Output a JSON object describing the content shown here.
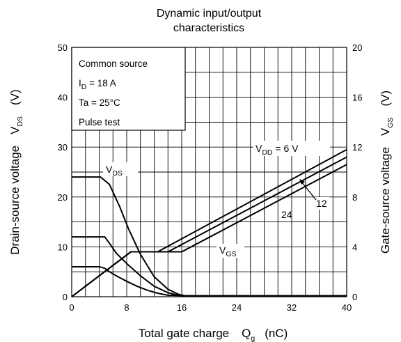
{
  "chart_data": {
    "type": "line",
    "title_line1": "Dynamic input/output",
    "title_line2": "characteristics",
    "xlabel": "Total gate charge",
    "xlabel_symbol": "Q",
    "xlabel_symbol_sub": "g",
    "xlabel_unit": "(nC)",
    "ylabel_left": "Drain-source voltage",
    "ylabel_left_symbol": "V",
    "ylabel_left_symbol_sub": "DS",
    "ylabel_left_unit": "(V)",
    "ylabel_right": "Gate-source voltage",
    "ylabel_right_symbol": "V",
    "ylabel_right_symbol_sub": "GS",
    "ylabel_right_unit": "(V)",
    "xlim": [
      0,
      40
    ],
    "ylim_left": [
      0,
      50
    ],
    "ylim_right": [
      0,
      20
    ],
    "x_ticks": [
      0,
      8,
      16,
      24,
      32,
      40
    ],
    "y_left_ticks": [
      0,
      10,
      20,
      30,
      40,
      50
    ],
    "y_right_ticks": [
      0,
      4,
      8,
      12,
      16,
      20
    ],
    "grid": true,
    "conditions": {
      "line1": "Common source",
      "line2_prefix": "I",
      "line2_sub": "D",
      "line2_rest": " = 18 A",
      "line3": "Ta = 25°C",
      "line4": "Pulse test"
    },
    "series_labels": {
      "vds_main": "V",
      "vds_sub": "DS",
      "vgs_main": "V",
      "vgs_sub": "GS",
      "vdd_main": "V",
      "vdd_sub": "DD",
      "vdd_rest": " = 6 V",
      "vdd_12": "12",
      "vdd_24": "24"
    },
    "series": [
      {
        "name": "VDS VDD=24V",
        "axis": "left",
        "x": [
          0,
          4.2,
          5.5,
          7,
          8.3,
          10,
          12,
          14,
          15.5,
          16.5,
          40
        ],
        "y": [
          24,
          24,
          22.5,
          18,
          13.5,
          8.5,
          4,
          1.5,
          0.5,
          0.2,
          0.2
        ]
      },
      {
        "name": "VDS VDD=12V",
        "axis": "left",
        "x": [
          0,
          4.8,
          5.6,
          6.5,
          8.2,
          10,
          12,
          14,
          15.5,
          16.5,
          40
        ],
        "y": [
          12,
          12,
          10.5,
          8.7,
          6.4,
          4.2,
          2.1,
          0.8,
          0.3,
          0.2,
          0.2
        ]
      },
      {
        "name": "VDS VDD=6V",
        "axis": "left",
        "x": [
          0,
          4.1,
          4.8,
          5.5,
          6.6,
          8,
          9.5,
          11,
          12.5,
          14,
          16.5,
          40
        ],
        "y": [
          6,
          6,
          5.7,
          5,
          4.1,
          3.1,
          2.1,
          1.3,
          0.7,
          0.3,
          0.2,
          0.2
        ]
      },
      {
        "name": "VGS VDD=6V",
        "axis": "right",
        "x": [
          0,
          8.6,
          12.5,
          40
        ],
        "y": [
          0,
          3.6,
          3.6,
          11.8
        ]
      },
      {
        "name": "VGS VDD=12V",
        "axis": "right",
        "x": [
          0,
          8.6,
          14,
          40
        ],
        "y": [
          0,
          3.6,
          3.6,
          11.2
        ]
      },
      {
        "name": "VGS VDD=24V",
        "axis": "right",
        "x": [
          0,
          8.6,
          16,
          40
        ],
        "y": [
          0,
          3.6,
          3.6,
          10.6
        ]
      }
    ]
  }
}
